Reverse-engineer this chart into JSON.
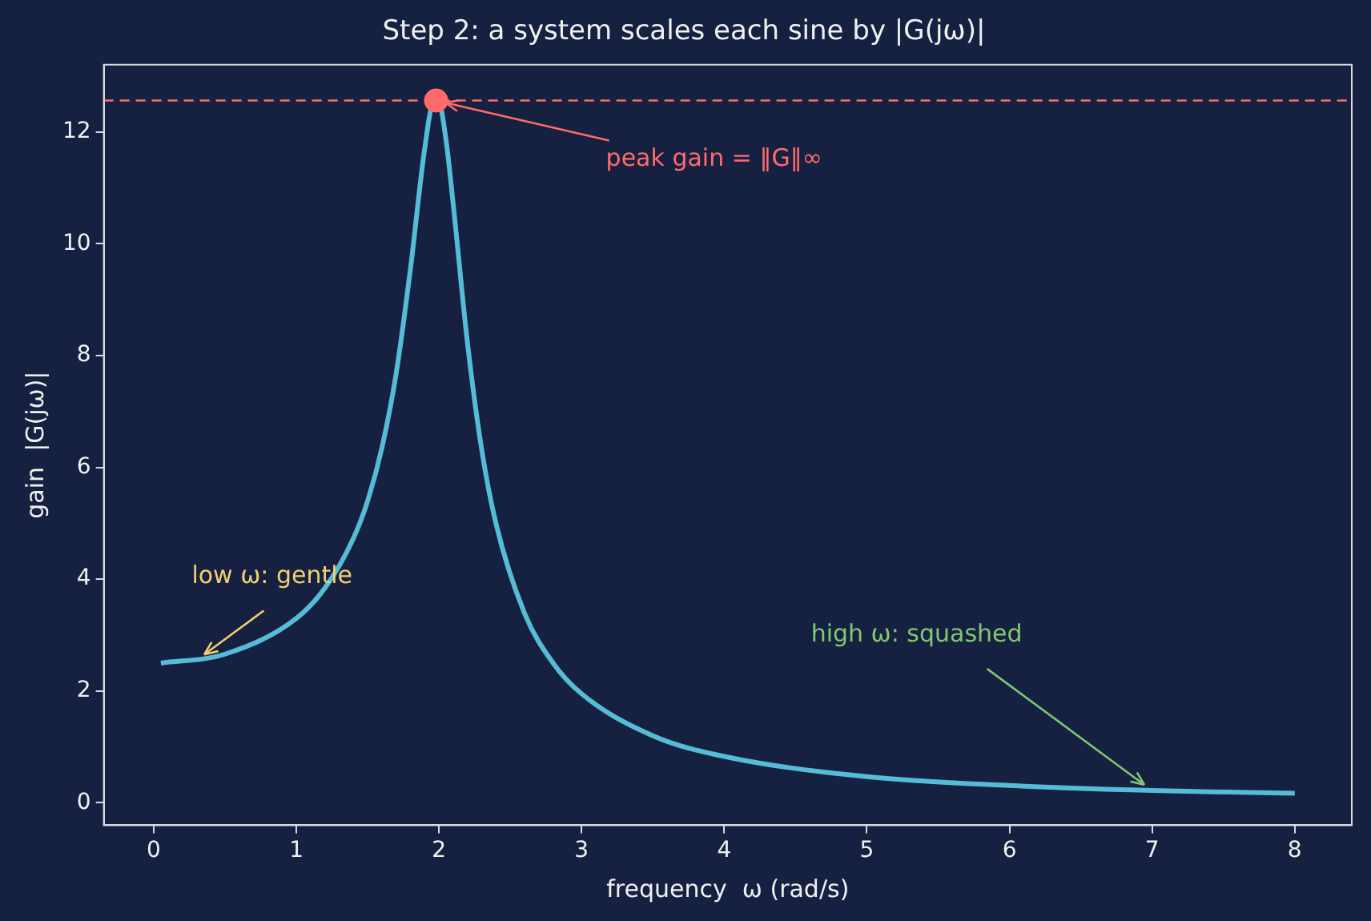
{
  "chart_data": {
    "type": "line",
    "title": "Step 2: a system scales each sine by |G(jω)|",
    "xlabel": "frequency  ω (rad/s)",
    "ylabel": "gain  |G(jω)|",
    "series": [
      {
        "type": "line",
        "color": "#56bcd6",
        "x": [
          0.05,
          0.5,
          1,
          1.2,
          1.4,
          1.5,
          1.6,
          1.7,
          1.8,
          1.9,
          1.96,
          2,
          2.05,
          2.1,
          2.2,
          2.3,
          2.4,
          2.6,
          2.8,
          3,
          3.5,
          4,
          5,
          6,
          7,
          8
        ],
        "values": [
          2.5,
          2.66,
          3.3,
          3.84,
          4.73,
          5.4,
          6.35,
          7.68,
          9.55,
          11.7,
          12.5,
          12.5,
          11.84,
          10.7,
          8.22,
          6.31,
          4.99,
          3.39,
          2.5,
          1.95,
          1.2,
          0.83,
          0.47,
          0.31,
          0.22,
          0.17
        ]
      },
      {
        "type": "scatter",
        "color": "#ff6b6b",
        "x": [
          1.98
        ],
        "values": [
          12.56
        ]
      }
    ],
    "ref_lines": [
      {
        "axis": "y",
        "value": 12.56,
        "color": "#ff6b6b",
        "line_style": "dashed"
      }
    ],
    "annotations": [
      {
        "text": "peak gain = ‖G‖∞",
        "x": 1.98,
        "y": 12.56
      },
      {
        "text": "low ω: gentle",
        "x": 0.3,
        "y": 2.55
      },
      {
        "text": "high ω: squashed",
        "x": 7,
        "y": 0.22
      }
    ],
    "xlim": [
      -0.35,
      8.4
    ],
    "ylim": [
      -0.4,
      13.2
    ],
    "xticks": [
      0,
      1,
      2,
      3,
      4,
      5,
      6,
      7,
      8
    ],
    "yticks": [
      0,
      2,
      4,
      6,
      8,
      10,
      12
    ],
    "grid": false,
    "legend": false
  }
}
